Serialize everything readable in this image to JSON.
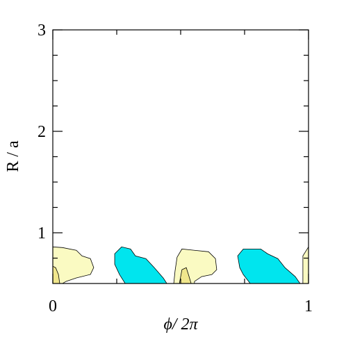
{
  "chart_data": {
    "type": "contour",
    "xlabel": "ϕ/ 2π",
    "ylabel": "R / a",
    "xlim": [
      0,
      1
    ],
    "ylim": [
      0.5,
      3
    ],
    "xticks": [
      0,
      1
    ],
    "yticks": [
      1,
      2,
      3
    ],
    "xminor_ticks": [
      0.25,
      0.5,
      0.75
    ],
    "yminor_ticks": [
      0.75,
      1.25,
      1.5,
      1.75,
      2.25,
      2.5,
      2.75
    ],
    "regions": [
      {
        "color": "#fafac2",
        "x": [
          0,
          0.038,
          0.092,
          0.114,
          0.147,
          0.16,
          0.147,
          0.092,
          0.052,
          0.038,
          0
        ],
        "y": [
          0.861,
          0.854,
          0.827,
          0.772,
          0.745,
          0.657,
          0.589,
          0.555,
          0.521,
          0.5,
          0.5
        ]
      },
      {
        "color": "#f0e68c",
        "x": [
          0,
          0.011,
          0.022,
          0.027,
          0
        ],
        "y": [
          0.67,
          0.656,
          0.589,
          0.5,
          0.5
        ]
      },
      {
        "color": "#00e5ee",
        "x": [
          0.242,
          0.269,
          0.304,
          0.323,
          0.364,
          0.397,
          0.432,
          0.446,
          0.283,
          0.261,
          0.242
        ],
        "y": [
          0.793,
          0.861,
          0.84,
          0.772,
          0.745,
          0.656,
          0.554,
          0.5,
          0.5,
          0.588,
          0.69
        ]
      },
      {
        "color": "#fafac2",
        "x": [
          0.486,
          0.505,
          0.554,
          0.609,
          0.636,
          0.641,
          0.622,
          0.582,
          0.554,
          0.554,
          0.473,
          0.478
        ],
        "y": [
          0.759,
          0.84,
          0.827,
          0.813,
          0.745,
          0.636,
          0.588,
          0.568,
          0.52,
          0.5,
          0.5,
          0.622
        ]
      },
      {
        "color": "#f0e68c",
        "x": [
          0.505,
          0.522,
          0.533,
          0.541,
          0.495
        ],
        "y": [
          0.636,
          0.656,
          0.568,
          0.5,
          0.5
        ]
      },
      {
        "color": "#00e5ee",
        "x": [
          0.723,
          0.745,
          0.813,
          0.84,
          0.88,
          0.908,
          0.948,
          0.967,
          0.772,
          0.745,
          0.731
        ],
        "y": [
          0.772,
          0.84,
          0.84,
          0.793,
          0.745,
          0.656,
          0.568,
          0.5,
          0.5,
          0.588,
          0.656
        ]
      },
      {
        "color": "#fafac2",
        "x": [
          1,
          0.978,
          0.978,
          1
        ],
        "y": [
          0.861,
          0.772,
          0.5,
          0.5
        ]
      }
    ]
  }
}
